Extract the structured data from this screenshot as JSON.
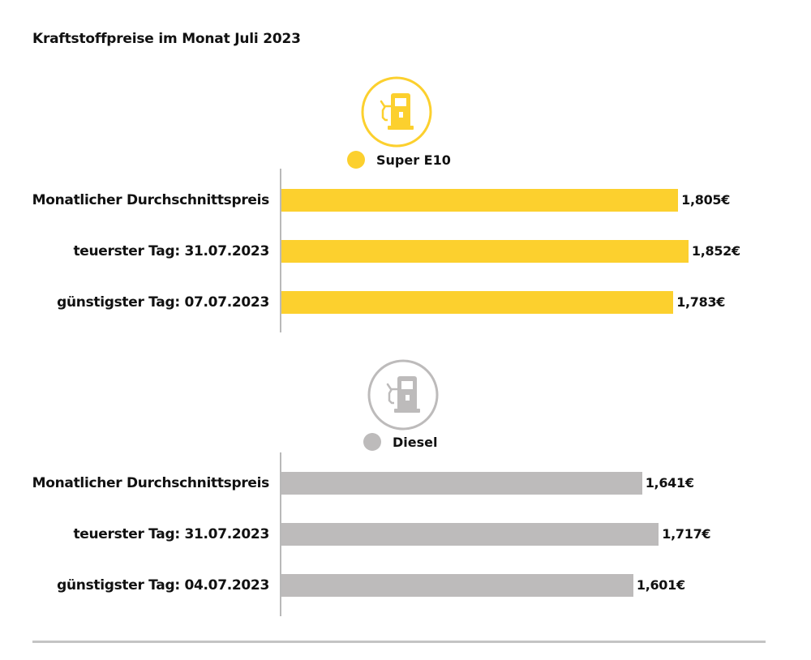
{
  "title": "Kraftstoffpreise im Monat Juli 2023",
  "chart_data": [
    {
      "type": "bar",
      "orientation": "horizontal",
      "series": [
        {
          "name": "Super E10",
          "values": [
            1.805,
            1.852,
            1.783
          ]
        }
      ],
      "categories": [
        "Monatlicher Durchschnittspreis",
        "teuerster Tag: 31.07.2023",
        "günstigster Tag: 07.07.2023"
      ],
      "value_labels": [
        "1,805€",
        "1,852€",
        "1,783€"
      ],
      "color": "#fcd02e",
      "icon": "fuel-pump-icon",
      "grid": false
    },
    {
      "type": "bar",
      "orientation": "horizontal",
      "series": [
        {
          "name": "Diesel",
          "values": [
            1.641,
            1.717,
            1.601
          ]
        }
      ],
      "categories": [
        "Monatlicher Durchschnittspreis",
        "teuerster Tag: 31.07.2023",
        "günstigster Tag: 04.07.2023"
      ],
      "value_labels": [
        "1,641€",
        "1,717€",
        "1,601€"
      ],
      "color": "#bdbbbb",
      "icon": "fuel-pump-icon",
      "grid": false
    }
  ]
}
